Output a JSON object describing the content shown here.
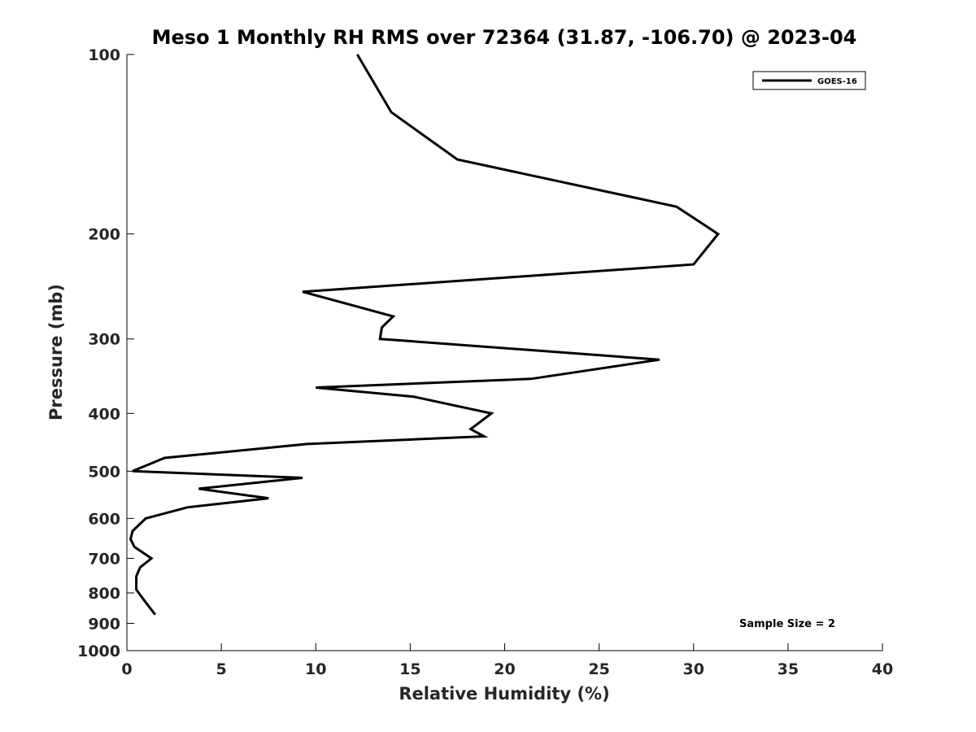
{
  "chart_data": {
    "type": "line",
    "title": "Meso 1 Monthly RH RMS over 72364 (31.87, -106.70) @ 2023-04",
    "xlabel": "Relative Humidity (%)",
    "ylabel": "Pressure (mb)",
    "xlim": [
      0,
      40
    ],
    "ylim": [
      100,
      1000
    ],
    "y_scale": "log",
    "y_reversed": true,
    "x_ticks": [
      0,
      5,
      10,
      15,
      20,
      25,
      30,
      35,
      40
    ],
    "y_ticks": [
      100,
      200,
      300,
      400,
      500,
      600,
      700,
      800,
      900,
      1000
    ],
    "grid": false,
    "legend_position": "top-right",
    "series": [
      {
        "name": "GOES-16",
        "color": "#000000",
        "points": [
          {
            "x": 12.2,
            "p": 100
          },
          {
            "x": 14.0,
            "p": 125
          },
          {
            "x": 17.5,
            "p": 150
          },
          {
            "x": 29.1,
            "p": 180
          },
          {
            "x": 31.3,
            "p": 200
          },
          {
            "x": 30.0,
            "p": 225
          },
          {
            "x": 9.3,
            "p": 250
          },
          {
            "x": 14.1,
            "p": 275
          },
          {
            "x": 13.5,
            "p": 287
          },
          {
            "x": 13.4,
            "p": 300
          },
          {
            "x": 28.2,
            "p": 325
          },
          {
            "x": 21.4,
            "p": 350
          },
          {
            "x": 10.0,
            "p": 362
          },
          {
            "x": 15.2,
            "p": 375
          },
          {
            "x": 19.3,
            "p": 400
          },
          {
            "x": 18.2,
            "p": 425
          },
          {
            "x": 18.9,
            "p": 437
          },
          {
            "x": 9.6,
            "p": 450
          },
          {
            "x": 2.0,
            "p": 475
          },
          {
            "x": 0.3,
            "p": 500
          },
          {
            "x": 9.3,
            "p": 513
          },
          {
            "x": 3.8,
            "p": 535
          },
          {
            "x": 7.5,
            "p": 555
          },
          {
            "x": 3.2,
            "p": 575
          },
          {
            "x": 1.0,
            "p": 600
          },
          {
            "x": 0.3,
            "p": 630
          },
          {
            "x": 0.2,
            "p": 650
          },
          {
            "x": 0.4,
            "p": 670
          },
          {
            "x": 1.3,
            "p": 700
          },
          {
            "x": 0.7,
            "p": 725
          },
          {
            "x": 0.5,
            "p": 750
          },
          {
            "x": 0.5,
            "p": 790
          },
          {
            "x": 1.0,
            "p": 830
          },
          {
            "x": 1.5,
            "p": 870
          }
        ]
      }
    ],
    "annotation": "Sample Size = 2"
  }
}
